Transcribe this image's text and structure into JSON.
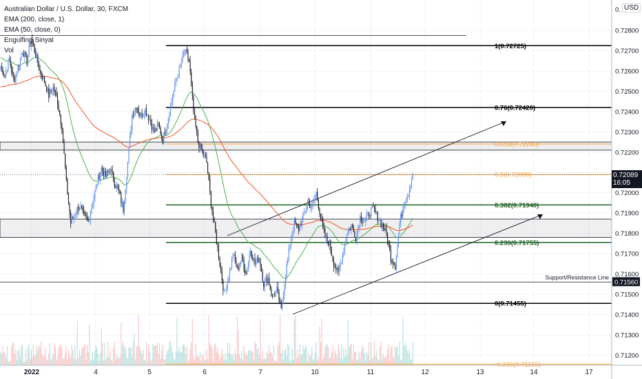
{
  "legend": {
    "title": "Australian Dollar / U.S. Dollar, 30, FXCM",
    "ema200": "EMA (200, close, 1)",
    "ema50": "EMA (50, close, 0)",
    "engulfing": "Engulfing Sinyal",
    "vol": "Vol"
  },
  "currency": "USD",
  "last_price": {
    "value": "0.72089",
    "countdown": "16:05"
  },
  "y_top_label": "0.",
  "chart_data": {
    "type": "candlestick",
    "symbol": "AUDUSD",
    "timeframe": "30",
    "ylim": [
      0.7115,
      0.7295
    ],
    "y_ticks": [
      "0.72800",
      "0.72700",
      "0.72600",
      "0.72500",
      "0.72400",
      "0.72300",
      "0.72200",
      "0.72100",
      "0.72000",
      "0.71900",
      "0.71800",
      "0.71700",
      "0.71600",
      "0.71500",
      "0.71400",
      "0.71300",
      "0.71200"
    ],
    "x_ticks": [
      "2022",
      "4",
      "5",
      "6",
      "7",
      "10",
      "11",
      "12",
      "13",
      "14",
      "17"
    ],
    "fibonacci": [
      {
        "label": "1(0.72725)",
        "price": 0.72725,
        "color": "#000000"
      },
      {
        "label": "0.76(0.72420)",
        "price": 0.7242,
        "color": "#000000"
      },
      {
        "label": "0.618(0.72240)",
        "price": 0.7224,
        "color": "#f7a540"
      },
      {
        "label": "0.5(0.72090)",
        "price": 0.7209,
        "color": "#f7a540"
      },
      {
        "label": "0.382(0.71940)",
        "price": 0.7194,
        "color": "#1b5e20"
      },
      {
        "label": "0.236(0.71755)",
        "price": 0.71755,
        "color": "#1b5e20"
      },
      {
        "label": "0(0.71455)",
        "price": 0.71455,
        "color": "#000000"
      },
      {
        "label": "-0.236(0.71155)",
        "price": 0.71155,
        "color": "#f7a540"
      }
    ],
    "support_resistance": {
      "label": "Support/Resistance Line",
      "price": 0.7156,
      "price_label": "0.71560"
    },
    "zones": [
      {
        "from": 0.7221,
        "to": 0.7225
      },
      {
        "from": 0.7178,
        "to": 0.7187
      }
    ],
    "horizontal_lines": [
      0.72775
    ],
    "channel": {
      "upper": [
        [
          0.718,
          0.728
        ],
        [
          0.7182,
          0.7233
        ]
      ],
      "lower": [
        [
          0.714,
          0.7188
        ]
      ]
    },
    "price_path": [
      0.7262,
      0.7258,
      0.7266,
      0.7255,
      0.7262,
      0.727,
      0.7265,
      0.7276,
      0.7268,
      0.726,
      0.7255,
      0.7248,
      0.7252,
      0.7245,
      0.7232,
      0.7205,
      0.7185,
      0.719,
      0.7194,
      0.7188,
      0.7186,
      0.7195,
      0.7205,
      0.7212,
      0.7208,
      0.7212,
      0.7205,
      0.72,
      0.7192,
      0.7215,
      0.7238,
      0.7243,
      0.7238,
      0.7241,
      0.7236,
      0.723,
      0.7233,
      0.7226,
      0.7235,
      0.7245,
      0.7255,
      0.7262,
      0.727,
      0.7265,
      0.724,
      0.7225,
      0.722,
      0.7215,
      0.7195,
      0.718,
      0.7165,
      0.715,
      0.7158,
      0.717,
      0.7162,
      0.7168,
      0.716,
      0.7172,
      0.7165,
      0.7168,
      0.7155,
      0.7158,
      0.7148,
      0.7152,
      0.7142,
      0.716,
      0.7175,
      0.7185,
      0.7182,
      0.7188,
      0.7195,
      0.7193,
      0.72,
      0.7188,
      0.7178,
      0.7175,
      0.7165,
      0.716,
      0.717,
      0.718,
      0.7184,
      0.7178,
      0.7188,
      0.7186,
      0.719,
      0.7192,
      0.7188,
      0.7184,
      0.718,
      0.7168,
      0.7164,
      0.7185,
      0.7195,
      0.72,
      0.7209
    ]
  }
}
